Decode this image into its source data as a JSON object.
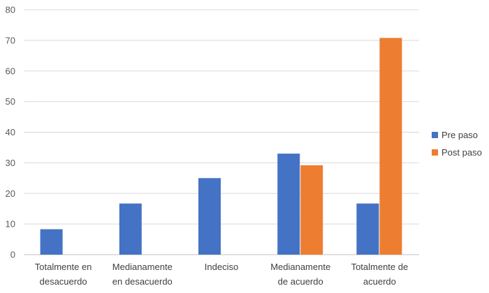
{
  "chart_data": {
    "type": "bar",
    "categories": [
      [
        "Totalmente en",
        "desacuerdo"
      ],
      [
        "Medianamente",
        "en desacuerdo"
      ],
      [
        "Indeciso"
      ],
      [
        "Medianamente",
        "de acuerdo"
      ],
      [
        "Totalmente de",
        "acuerdo"
      ]
    ],
    "series": [
      {
        "name": "Pre paso",
        "color": "#4472c4",
        "values": [
          8.3,
          16.7,
          25.0,
          33.0,
          16.7
        ]
      },
      {
        "name": "Post paso",
        "color": "#ed7d31",
        "values": [
          0,
          0,
          0,
          29.2,
          70.8
        ]
      }
    ],
    "ylim": [
      0,
      80
    ],
    "yticks": [
      0,
      10,
      20,
      30,
      40,
      50,
      60,
      70,
      80
    ],
    "grid": true,
    "legend": "right"
  }
}
